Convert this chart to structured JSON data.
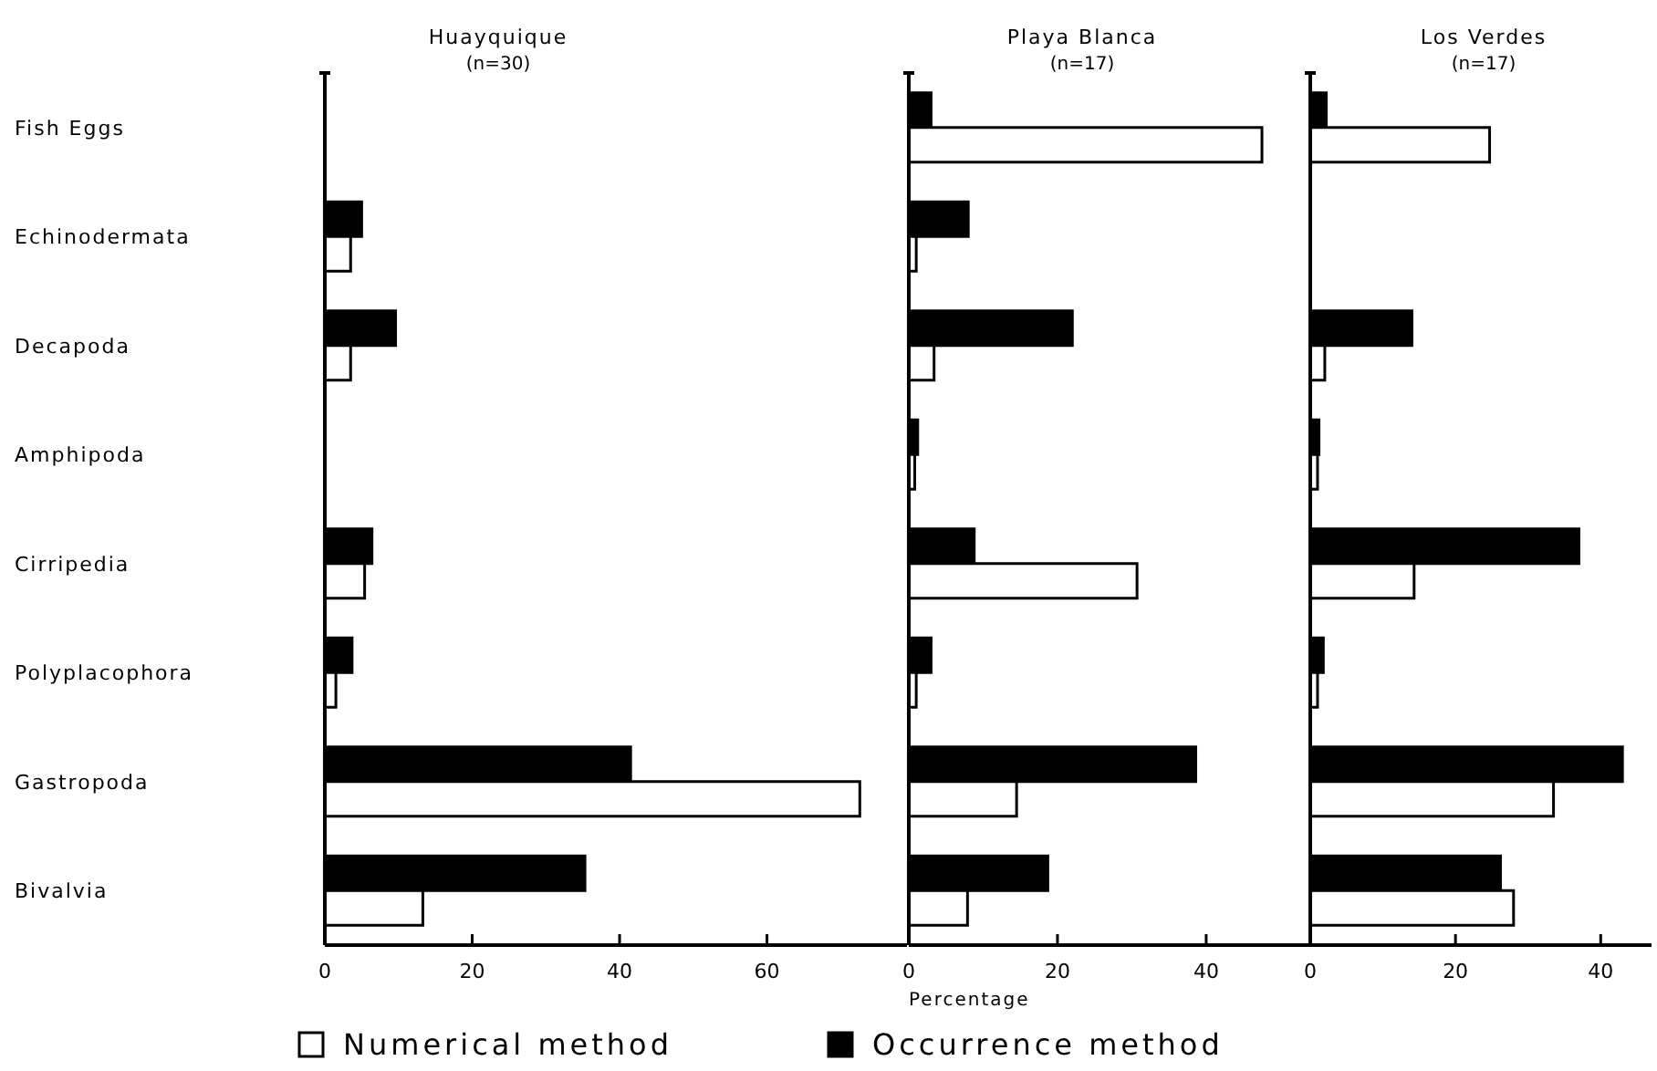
{
  "chart_data": [
    {
      "type": "bar",
      "orientation": "horizontal",
      "title": "Huayquique",
      "subtitle": "(n=30)",
      "categories": [
        "Fish Eggs",
        "Echinodermata",
        "Decapoda",
        "Amphipoda",
        "Cirripedia",
        "Polyplacophora",
        "Gastropoda",
        "Bivalvia"
      ],
      "xlim": [
        0,
        79
      ],
      "xticks": [
        0,
        20,
        40,
        60
      ],
      "series": [
        {
          "color": "#000000",
          "values": [
            null,
            5,
            9.6,
            null,
            6.4,
            3.7,
            41.5,
            35.3
          ]
        },
        {
          "color": "#ffffff",
          "values": [
            null,
            3.5,
            3.5,
            null,
            5.4,
            1.5,
            72.6,
            13.3
          ]
        }
      ]
    },
    {
      "type": "bar",
      "orientation": "horizontal",
      "title": "Playa Blanca",
      "subtitle": "(n=17)",
      "xlabel": "Percentage",
      "categories": [
        null,
        null,
        null,
        null,
        null,
        null,
        null,
        null
      ],
      "xlim": [
        0,
        54
      ],
      "xticks": [
        0,
        20,
        40
      ],
      "tick_labels": "x",
      "legend": "bottom",
      "series": [
        {
          "name": "Occurrence method",
          "color": "#000000",
          "values": [
            3,
            8,
            22,
            1.2,
            8.8,
            3,
            38.6,
            18.7
          ]
        },
        {
          "name": "Numerical method",
          "color": "#ffffff",
          "values": [
            47.5,
            1,
            3.4,
            0.8,
            30.7,
            1,
            14.5,
            7.9
          ]
        }
      ]
    },
    {
      "type": "bar",
      "orientation": "horizontal",
      "title": "Los Verdes",
      "subtitle": "(n=17)",
      "categories": [
        null,
        null,
        null,
        null,
        null,
        null,
        null,
        null
      ],
      "xlim": [
        0,
        47
      ],
      "xticks": [
        0,
        20,
        40
      ],
      "tick_labels": "x",
      "series": [
        {
          "color": "#000000",
          "values": [
            2.2,
            null,
            14,
            1.2,
            37,
            1.8,
            43,
            26.2
          ]
        },
        {
          "color": "#ffffff",
          "values": [
            24.7,
            null,
            2,
            1,
            14.3,
            1,
            33.5,
            28
          ]
        }
      ]
    }
  ]
}
